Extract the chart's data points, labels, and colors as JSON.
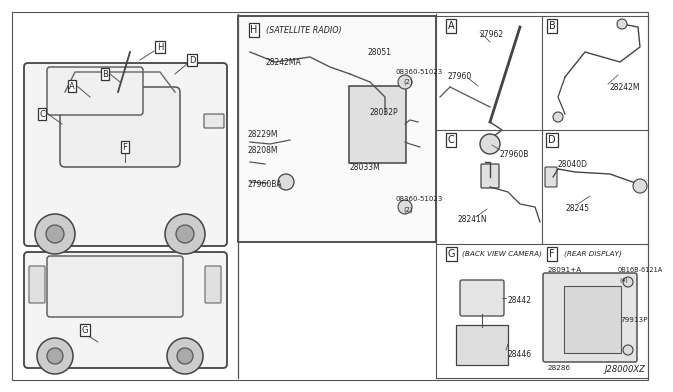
{
  "bg_color": "#ffffff",
  "border_color": "#555555",
  "text_color": "#222222",
  "diagram_code": "J28000XZ",
  "parts_A": [
    "27960",
    "27962",
    "27960B"
  ],
  "parts_B": [
    "28242M"
  ],
  "parts_C": [
    "28241N"
  ],
  "parts_D": [
    "28040D",
    "28245"
  ],
  "parts_G": [
    "28442",
    "28446"
  ],
  "parts_F": [
    "28091+A",
    "0B16B-6121A",
    "79913P",
    "28286"
  ],
  "parts_H": [
    "28242MA",
    "28229M",
    "28208M",
    "27960BA",
    "28051",
    "28032P",
    "28033M",
    "08360-51023"
  ]
}
